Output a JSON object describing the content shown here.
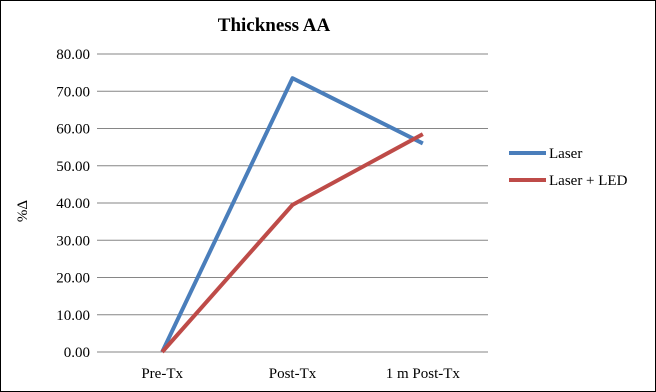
{
  "chart_data": {
    "type": "line",
    "title": "Thickness AA",
    "xlabel": "",
    "ylabel": "%Δ",
    "categories": [
      "Pre-Tx",
      "Post-Tx",
      "1 m Post-Tx"
    ],
    "ylim": [
      0,
      80
    ],
    "yticks": [
      "0.00",
      "10.00",
      "20.00",
      "30.00",
      "40.00",
      "50.00",
      "60.00",
      "70.00",
      "80.00"
    ],
    "grid": true,
    "legend_position": "right",
    "series": [
      {
        "name": "Laser",
        "values": [
          0,
          73.5,
          56.0
        ],
        "color": "#4a7ebb"
      },
      {
        "name": "Laser + LED",
        "values": [
          0,
          39.5,
          58.5
        ],
        "color": "#be4b48"
      }
    ]
  }
}
